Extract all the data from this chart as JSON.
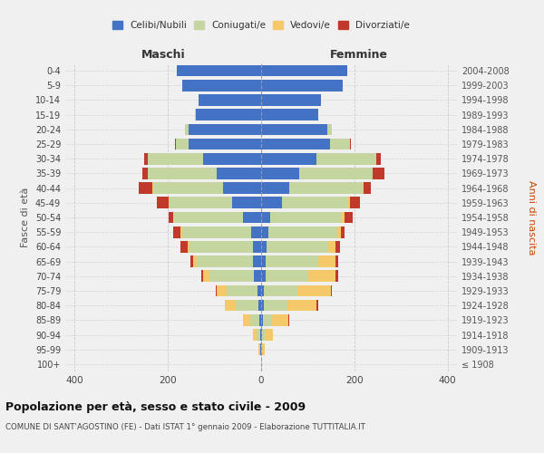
{
  "age_groups": [
    "100+",
    "95-99",
    "90-94",
    "85-89",
    "80-84",
    "75-79",
    "70-74",
    "65-69",
    "60-64",
    "55-59",
    "50-54",
    "45-49",
    "40-44",
    "35-39",
    "30-34",
    "25-29",
    "20-24",
    "15-19",
    "10-14",
    "5-9",
    "0-4"
  ],
  "birth_years": [
    "≤ 1908",
    "1909-1913",
    "1914-1918",
    "1919-1923",
    "1924-1928",
    "1929-1933",
    "1934-1938",
    "1939-1943",
    "1944-1948",
    "1949-1953",
    "1954-1958",
    "1959-1963",
    "1964-1968",
    "1969-1973",
    "1974-1978",
    "1979-1983",
    "1984-1988",
    "1989-1993",
    "1994-1998",
    "1999-2003",
    "2004-2008"
  ],
  "maschi": {
    "celibi": [
      0,
      1,
      2,
      3,
      5,
      8,
      15,
      18,
      18,
      22,
      38,
      62,
      82,
      95,
      125,
      155,
      155,
      140,
      135,
      170,
      180
    ],
    "coniugati": [
      0,
      2,
      8,
      20,
      50,
      65,
      95,
      120,
      135,
      148,
      148,
      135,
      150,
      148,
      118,
      28,
      8,
      2,
      0,
      0,
      0
    ],
    "vedovi": [
      0,
      3,
      8,
      15,
      22,
      22,
      15,
      8,
      5,
      3,
      2,
      2,
      1,
      0,
      0,
      0,
      0,
      0,
      0,
      0,
      0
    ],
    "divorziati": [
      0,
      0,
      0,
      0,
      0,
      2,
      4,
      5,
      15,
      15,
      10,
      25,
      30,
      12,
      8,
      2,
      0,
      0,
      0,
      0,
      0
    ]
  },
  "femmine": {
    "nubili": [
      0,
      0,
      2,
      3,
      5,
      5,
      10,
      10,
      12,
      15,
      20,
      45,
      60,
      82,
      118,
      148,
      142,
      122,
      128,
      175,
      185
    ],
    "coniugate": [
      0,
      2,
      8,
      20,
      52,
      72,
      92,
      112,
      132,
      148,
      152,
      142,
      158,
      158,
      128,
      42,
      10,
      0,
      0,
      0,
      0
    ],
    "vedove": [
      0,
      5,
      15,
      35,
      62,
      72,
      58,
      38,
      15,
      8,
      6,
      4,
      2,
      0,
      0,
      0,
      0,
      0,
      0,
      0,
      0
    ],
    "divorziate": [
      0,
      0,
      0,
      2,
      3,
      3,
      5,
      5,
      10,
      8,
      18,
      20,
      15,
      25,
      10,
      2,
      0,
      0,
      0,
      0,
      0
    ]
  },
  "colors": {
    "celibi": "#4472C4",
    "coniugati": "#C5D5A0",
    "vedovi": "#F5C96A",
    "divorziati": "#C0392B"
  },
  "xlim": 420,
  "xtick_positions": [
    -400,
    -200,
    0,
    200,
    400
  ],
  "title": "Popolazione per età, sesso e stato civile - 2009",
  "subtitle": "COMUNE DI SANT'AGOSTINO (FE) - Dati ISTAT 1° gennaio 2009 - Elaborazione TUTTITALIA.IT",
  "ylabel_left": "Fasce di età",
  "ylabel_right": "Anni di nascita",
  "xlabel_left": "Maschi",
  "xlabel_right": "Femmine",
  "legend_labels": [
    "Celibi/Nubili",
    "Coniugati/e",
    "Vedovi/e",
    "Divorziati/e"
  ],
  "background_color": "#f0f0f0"
}
